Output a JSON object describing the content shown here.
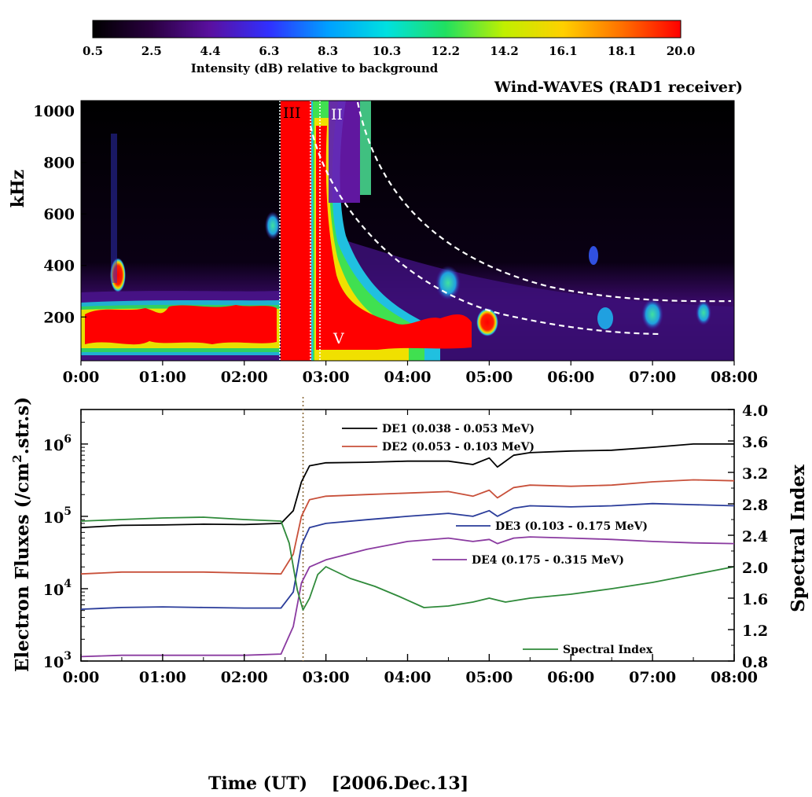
{
  "colorbar": {
    "ticks": [
      "0.5",
      "2.5",
      "4.4",
      "6.3",
      "8.3",
      "10.3",
      "12.2",
      "14.2",
      "16.1",
      "18.1",
      "20.0"
    ],
    "label": "Intensity (dB) relative to background",
    "colors": [
      "#000000",
      "#2a0040",
      "#5a10a0",
      "#3030ff",
      "#00a0ff",
      "#00e0e0",
      "#20e060",
      "#c0f000",
      "#ffd000",
      "#ff7000",
      "#ff0000"
    ]
  },
  "spectrogram": {
    "title": "Wind-WAVES (RAD1 receiver)",
    "ylabel": "kHz",
    "yticks": [
      "1000",
      "800",
      "600",
      "400",
      "200"
    ],
    "xticks": [
      "0:00",
      "01:00",
      "02:00",
      "03:00",
      "04:00",
      "05:00",
      "06:00",
      "07:00",
      "08:00"
    ],
    "burst_labels": {
      "type3": "III",
      "type2": "II",
      "type5": "V"
    }
  },
  "chart_data": {
    "type": "line",
    "x_unit": "hours UT",
    "xlim": [
      0,
      8
    ],
    "left_axis": {
      "label": "Electron Fluxes (/cm2.str.s)",
      "scale": "log",
      "ylim": [
        1000,
        3000000
      ]
    },
    "right_axis": {
      "label": "Spectral Index",
      "ylim": [
        0.8,
        4.0
      ]
    },
    "xlabel": "Time (UT)    [2006.Dec.13]",
    "series": [
      {
        "name": "DE1 (0.038 - 0.053 MeV)",
        "color": "#000000",
        "axis": "left",
        "x": [
          0,
          0.5,
          1.0,
          1.5,
          2.0,
          2.45,
          2.6,
          2.7,
          2.8,
          3.0,
          3.5,
          4.0,
          4.5,
          4.8,
          5.0,
          5.1,
          5.3,
          5.5,
          6.0,
          6.5,
          7.0,
          7.5,
          8.0
        ],
        "y": [
          70000,
          75000,
          76000,
          78000,
          77000,
          80000,
          120000,
          300000,
          500000,
          550000,
          560000,
          580000,
          580000,
          520000,
          640000,
          480000,
          700000,
          760000,
          800000,
          820000,
          900000,
          1000000,
          1000000
        ]
      },
      {
        "name": "DE2 (0.053 - 0.103 MeV)",
        "color": "#c8503a",
        "axis": "left",
        "x": [
          0,
          0.5,
          1.0,
          1.5,
          2.0,
          2.45,
          2.6,
          2.7,
          2.8,
          3.0,
          3.5,
          4.0,
          4.5,
          4.8,
          5.0,
          5.1,
          5.3,
          5.5,
          6.0,
          6.5,
          7.0,
          7.5,
          8.0
        ],
        "y": [
          16000,
          17000,
          17000,
          17000,
          16500,
          16000,
          30000,
          100000,
          170000,
          190000,
          200000,
          210000,
          220000,
          190000,
          230000,
          180000,
          250000,
          270000,
          260000,
          270000,
          300000,
          320000,
          310000
        ]
      },
      {
        "name": "DE3 (0.103 - 0.175 MeV)",
        "color": "#2a3c9a",
        "axis": "left",
        "x": [
          0,
          0.5,
          1.0,
          1.5,
          2.0,
          2.45,
          2.6,
          2.7,
          2.8,
          3.0,
          3.5,
          4.0,
          4.5,
          4.8,
          5.0,
          5.1,
          5.3,
          5.5,
          6.0,
          6.5,
          7.0,
          7.5,
          8.0
        ],
        "y": [
          5200,
          5500,
          5600,
          5500,
          5400,
          5400,
          9000,
          40000,
          70000,
          80000,
          90000,
          100000,
          110000,
          100000,
          120000,
          100000,
          130000,
          140000,
          135000,
          140000,
          150000,
          145000,
          140000
        ]
      },
      {
        "name": "DE4 (0.175 - 0.315 MeV)",
        "color": "#8a3aa0",
        "axis": "left",
        "x": [
          0,
          0.5,
          1.0,
          1.5,
          2.0,
          2.45,
          2.6,
          2.7,
          2.8,
          3.0,
          3.5,
          4.0,
          4.5,
          4.8,
          5.0,
          5.1,
          5.3,
          5.5,
          6.0,
          6.5,
          7.0,
          7.5,
          8.0
        ],
        "y": [
          1150,
          1200,
          1200,
          1200,
          1200,
          1250,
          3000,
          12000,
          20000,
          25000,
          35000,
          45000,
          50000,
          45000,
          48000,
          42000,
          50000,
          52000,
          50000,
          48000,
          45000,
          43000,
          42000
        ]
      },
      {
        "name": "Spectral Index",
        "color": "#2f8a3a",
        "axis": "right",
        "x": [
          0,
          0.5,
          1.0,
          1.5,
          2.0,
          2.45,
          2.55,
          2.65,
          2.72,
          2.8,
          2.9,
          3.0,
          3.3,
          3.6,
          3.9,
          4.2,
          4.5,
          4.8,
          5.0,
          5.2,
          5.5,
          6.0,
          6.5,
          7.0,
          7.5,
          8.0
        ],
        "y": [
          2.58,
          2.6,
          2.62,
          2.63,
          2.6,
          2.58,
          2.3,
          1.7,
          1.45,
          1.6,
          1.9,
          2.0,
          1.85,
          1.75,
          1.62,
          1.48,
          1.5,
          1.55,
          1.6,
          1.55,
          1.6,
          1.65,
          1.72,
          1.8,
          1.9,
          2.0
        ]
      }
    ],
    "yticks_left": [
      "10^3",
      "10^4",
      "10^5",
      "10^6"
    ],
    "yticks_right": [
      "4.0",
      "3.6",
      "3.2",
      "2.8",
      "2.4",
      "2.0",
      "1.6",
      "1.2",
      "0.8"
    ],
    "xticks": [
      "0:00",
      "01:00",
      "02:00",
      "03:00",
      "04:00",
      "05:00",
      "06:00",
      "07:00",
      "08:00"
    ],
    "event_line_x": 2.72
  }
}
